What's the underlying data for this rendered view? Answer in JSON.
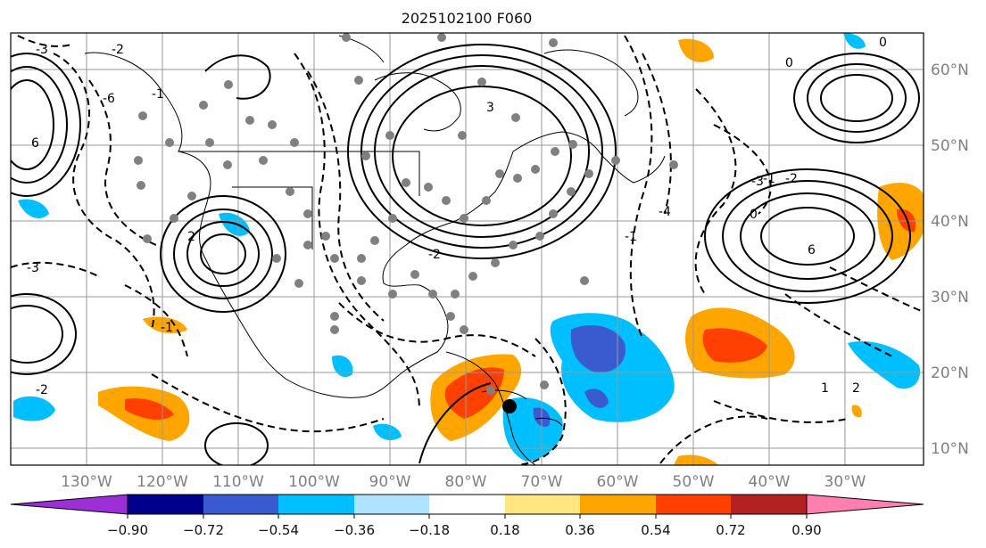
{
  "title": "2025102100 F060",
  "lon_labels": [
    "130°W",
    "120°W",
    "110°W",
    "100°W",
    "90°W",
    "80°W",
    "70°W",
    "60°W",
    "50°W",
    "40°W",
    "30°W"
  ],
  "lat_labels": [
    "60°N",
    "50°N",
    "40°N",
    "30°N",
    "20°N",
    "10°N"
  ],
  "colorbar": {
    "ticks": [
      "−0.90",
      "−0.72",
      "−0.54",
      "−0.36",
      "−0.18",
      "0.18",
      "0.36",
      "0.54",
      "0.72",
      "0.90"
    ],
    "colors": [
      "#9b30d9",
      "#00008b",
      "#3a5ad0",
      "#00bfff",
      "#aee4ff",
      "#ffffff",
      "#ffe680",
      "#ffa500",
      "#ff4000",
      "#b22222",
      "#ff7fb0"
    ]
  },
  "contour_labels": [
    "-3",
    "-2",
    "-1",
    "0",
    "-1",
    "-2",
    "-3",
    "-4",
    "2",
    "3",
    "6",
    "-6",
    "-3",
    "-2",
    "-1",
    "0",
    "1",
    "2",
    "6",
    "-2",
    "-1",
    "0"
  ]
}
